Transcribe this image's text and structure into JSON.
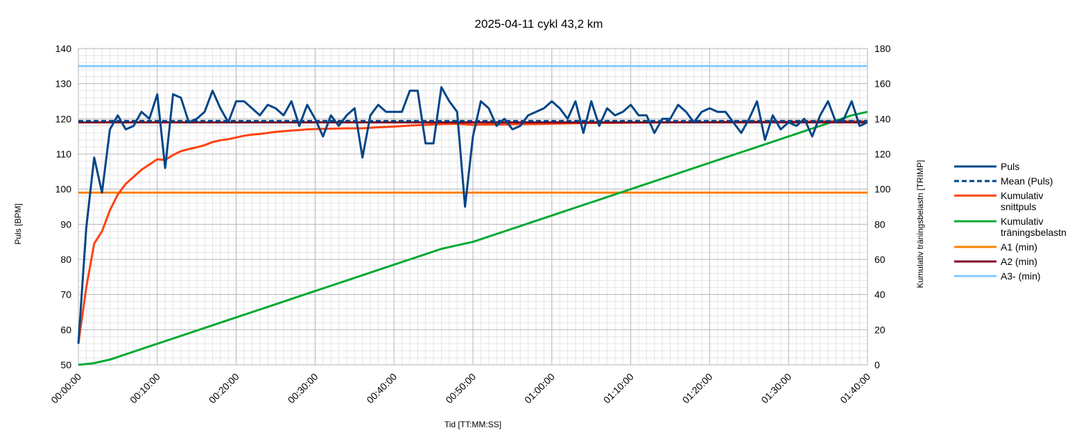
{
  "chart_data": {
    "type": "line",
    "title": "2025-04-11 cykl 43,2 km",
    "xlabel": "Tid [TT:MM:SS]",
    "ylabel": "Puls [BPM]",
    "y2label": "Kumulativ träningsbelastn [TRIMP]",
    "xlim": [
      0,
      100
    ],
    "ylim": [
      50,
      140
    ],
    "y2lim": [
      0,
      180
    ],
    "x_ticks": [
      0,
      10,
      20,
      30,
      40,
      50,
      60,
      70,
      80,
      90,
      100
    ],
    "x_tick_labels": [
      "00:00:00",
      "00:10:00",
      "00:20:00",
      "00:30:00",
      "00:40:00",
      "00:50:00",
      "01:00:00",
      "01:10:00",
      "01:20:00",
      "01:30:00",
      "01:40:00"
    ],
    "y_ticks": [
      50,
      60,
      70,
      80,
      90,
      100,
      110,
      120,
      130,
      140
    ],
    "y2_ticks": [
      0,
      20,
      40,
      60,
      80,
      100,
      120,
      140,
      160,
      180
    ],
    "grid": true,
    "legend_position": "right",
    "series": [
      {
        "name": "Puls",
        "axis": "left",
        "color": "#004586",
        "dash": "solid",
        "points": [
          [
            0,
            56
          ],
          [
            1,
            89
          ],
          [
            2,
            109
          ],
          [
            3,
            99
          ],
          [
            4,
            117
          ],
          [
            5,
            121
          ],
          [
            6,
            117
          ],
          [
            7,
            118
          ],
          [
            8,
            122
          ],
          [
            9,
            120
          ],
          [
            10,
            127
          ],
          [
            11,
            106
          ],
          [
            12,
            127
          ],
          [
            13,
            126
          ],
          [
            14,
            119
          ],
          [
            15,
            120
          ],
          [
            16,
            122
          ],
          [
            17,
            128
          ],
          [
            18,
            123
          ],
          [
            19,
            119
          ],
          [
            20,
            125
          ],
          [
            21,
            125
          ],
          [
            22,
            123
          ],
          [
            23,
            121
          ],
          [
            24,
            124
          ],
          [
            25,
            123
          ],
          [
            26,
            121
          ],
          [
            27,
            125
          ],
          [
            28,
            118
          ],
          [
            29,
            124
          ],
          [
            30,
            120
          ],
          [
            31,
            115
          ],
          [
            32,
            121
          ],
          [
            33,
            118
          ],
          [
            34,
            121
          ],
          [
            35,
            123
          ],
          [
            36,
            109
          ],
          [
            37,
            121
          ],
          [
            38,
            124
          ],
          [
            39,
            122
          ],
          [
            40,
            122
          ],
          [
            41,
            122
          ],
          [
            42,
            128
          ],
          [
            43,
            128
          ],
          [
            44,
            113
          ],
          [
            45,
            113
          ],
          [
            46,
            129
          ],
          [
            47,
            125
          ],
          [
            48,
            122
          ],
          [
            49,
            95
          ],
          [
            50,
            115
          ],
          [
            51,
            125
          ],
          [
            52,
            123
          ],
          [
            53,
            118
          ],
          [
            54,
            120
          ],
          [
            55,
            117
          ],
          [
            56,
            118
          ],
          [
            57,
            121
          ],
          [
            58,
            122
          ],
          [
            59,
            123
          ],
          [
            60,
            125
          ],
          [
            61,
            123
          ],
          [
            62,
            120
          ],
          [
            63,
            125
          ],
          [
            64,
            116
          ],
          [
            65,
            125
          ],
          [
            66,
            118
          ],
          [
            67,
            123
          ],
          [
            68,
            121
          ],
          [
            69,
            122
          ],
          [
            70,
            124
          ],
          [
            71,
            121
          ],
          [
            72,
            121
          ],
          [
            73,
            116
          ],
          [
            74,
            120
          ],
          [
            75,
            120
          ],
          [
            76,
            124
          ],
          [
            77,
            122
          ],
          [
            78,
            119
          ],
          [
            79,
            122
          ],
          [
            80,
            123
          ],
          [
            81,
            122
          ],
          [
            82,
            122
          ],
          [
            83,
            119
          ],
          [
            84,
            116
          ],
          [
            85,
            120
          ],
          [
            86,
            125
          ],
          [
            87,
            114
          ],
          [
            88,
            121
          ],
          [
            89,
            117
          ],
          [
            90,
            119
          ],
          [
            91,
            118
          ],
          [
            92,
            120
          ],
          [
            93,
            115
          ],
          [
            94,
            121
          ],
          [
            95,
            125
          ],
          [
            96,
            119
          ],
          [
            97,
            120
          ],
          [
            98,
            125
          ],
          [
            99,
            118
          ],
          [
            100,
            119
          ]
        ]
      },
      {
        "name": "Mean (Puls)",
        "axis": "left",
        "color": "#004586",
        "dash": "dashed",
        "points": [
          [
            0,
            119.4
          ],
          [
            100,
            119.4
          ]
        ]
      },
      {
        "name": "Kumulativ snittpuls",
        "axis": "left",
        "color": "#ff420e",
        "dash": "solid",
        "points": [
          [
            0,
            56
          ],
          [
            1,
            72
          ],
          [
            2,
            84.5
          ],
          [
            3,
            88
          ],
          [
            4,
            94
          ],
          [
            5,
            98.5
          ],
          [
            6,
            101.5
          ],
          [
            7,
            103.5
          ],
          [
            8,
            105.5
          ],
          [
            9,
            107
          ],
          [
            10,
            108.5
          ],
          [
            11,
            108.3
          ],
          [
            12,
            109.7
          ],
          [
            13,
            110.8
          ],
          [
            14,
            111.4
          ],
          [
            15,
            111.9
          ],
          [
            16,
            112.5
          ],
          [
            17,
            113.4
          ],
          [
            18,
            113.9
          ],
          [
            19,
            114.2
          ],
          [
            20,
            114.7
          ],
          [
            21,
            115.2
          ],
          [
            22,
            115.5
          ],
          [
            23,
            115.7
          ],
          [
            24,
            116
          ],
          [
            25,
            116.3
          ],
          [
            26,
            116.5
          ],
          [
            27,
            116.7
          ],
          [
            28,
            116.8
          ],
          [
            29,
            117
          ],
          [
            30,
            117.1
          ],
          [
            32,
            117.2
          ],
          [
            34,
            117.3
          ],
          [
            36,
            117.3
          ],
          [
            38,
            117.6
          ],
          [
            40,
            117.8
          ],
          [
            42,
            118.1
          ],
          [
            44,
            118.3
          ],
          [
            46,
            118.5
          ],
          [
            48,
            118.6
          ],
          [
            50,
            118.3
          ],
          [
            52,
            118.4
          ],
          [
            54,
            118.4
          ],
          [
            56,
            118.5
          ],
          [
            58,
            118.5
          ],
          [
            60,
            118.6
          ],
          [
            65,
            118.8
          ],
          [
            70,
            118.9
          ],
          [
            75,
            119
          ],
          [
            80,
            119.1
          ],
          [
            85,
            119.2
          ],
          [
            90,
            119.2
          ],
          [
            95,
            119.3
          ],
          [
            100,
            119.3
          ]
        ]
      },
      {
        "name": "Kumulativ träningsbelastn",
        "axis": "right",
        "color": "#00a933",
        "dash": "solid",
        "points": [
          [
            0,
            0
          ],
          [
            2,
            1
          ],
          [
            4,
            3
          ],
          [
            6,
            6
          ],
          [
            8,
            9
          ],
          [
            10,
            12
          ],
          [
            12,
            15
          ],
          [
            14,
            18
          ],
          [
            16,
            21
          ],
          [
            18,
            24
          ],
          [
            20,
            27
          ],
          [
            22,
            30
          ],
          [
            24,
            33
          ],
          [
            26,
            36
          ],
          [
            28,
            39
          ],
          [
            30,
            42
          ],
          [
            32,
            45
          ],
          [
            34,
            48
          ],
          [
            36,
            51
          ],
          [
            38,
            54
          ],
          [
            40,
            57
          ],
          [
            42,
            60
          ],
          [
            44,
            63
          ],
          [
            46,
            66
          ],
          [
            48,
            68
          ],
          [
            50,
            70
          ],
          [
            52,
            73
          ],
          [
            54,
            76
          ],
          [
            56,
            79
          ],
          [
            58,
            82
          ],
          [
            60,
            85
          ],
          [
            62,
            88
          ],
          [
            64,
            91
          ],
          [
            66,
            94
          ],
          [
            68,
            97
          ],
          [
            70,
            100
          ],
          [
            72,
            103
          ],
          [
            74,
            106
          ],
          [
            76,
            109
          ],
          [
            78,
            112
          ],
          [
            80,
            115
          ],
          [
            82,
            118
          ],
          [
            84,
            121
          ],
          [
            86,
            124
          ],
          [
            88,
            127
          ],
          [
            90,
            130
          ],
          [
            92,
            133
          ],
          [
            94,
            136
          ],
          [
            96,
            139
          ],
          [
            98,
            142
          ],
          [
            100,
            144
          ]
        ]
      },
      {
        "name": "A1 (min)",
        "axis": "left",
        "color": "#ff8000",
        "dash": "solid",
        "points": [
          [
            0,
            99
          ],
          [
            100,
            99
          ]
        ]
      },
      {
        "name": "A2 (min)",
        "axis": "left",
        "color": "#7e0021",
        "dash": "solid",
        "points": [
          [
            0,
            119
          ],
          [
            100,
            119
          ]
        ]
      },
      {
        "name": "A3- (min)",
        "axis": "left",
        "color": "#83caff",
        "dash": "solid",
        "points": [
          [
            0,
            135
          ],
          [
            100,
            135
          ]
        ]
      }
    ]
  }
}
